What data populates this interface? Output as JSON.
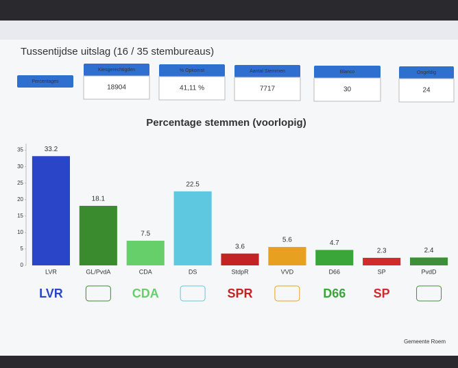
{
  "header": {
    "title": "Tussentijdse uitslag (16 / 35 stembureaus)",
    "cards": [
      {
        "label": "Percentages"
      },
      {
        "label": "Kiesgerechtigden",
        "value": 18904
      },
      {
        "label": "% Opkomst",
        "value": "41,11 %"
      },
      {
        "label": "Aantal Stemmen",
        "value": 7717
      },
      {
        "label": "Blanco",
        "value": 30
      },
      {
        "label": "Ongeldig",
        "value": 24
      }
    ]
  },
  "chart_data": {
    "type": "bar",
    "title": "Percentage stemmen (voorlopig)",
    "categories": [
      "LVR",
      "GL/PvdA",
      "CDA",
      "DS",
      "StdpR",
      "VVD",
      "D66",
      "SP",
      "PvdD"
    ],
    "values": [
      33.2,
      18.1,
      7.5,
      22.5,
      3.6,
      5.6,
      4.7,
      2.3,
      2.4
    ],
    "colors": [
      "#2a45c8",
      "#3a8a2e",
      "#66cf6a",
      "#5ec8e0",
      "#c42323",
      "#e8a020",
      "#3aa63a",
      "#d02a2a",
      "#3f8f3a"
    ],
    "logos": [
      "LVR",
      null,
      "CDA",
      null,
      "SPR",
      null,
      "D66",
      "SP",
      null
    ],
    "ylim": [
      0,
      37
    ],
    "yticks": [
      0,
      5,
      10,
      15,
      20,
      25,
      30,
      35
    ],
    "grid": false
  },
  "footer": "Gemeente Roem"
}
